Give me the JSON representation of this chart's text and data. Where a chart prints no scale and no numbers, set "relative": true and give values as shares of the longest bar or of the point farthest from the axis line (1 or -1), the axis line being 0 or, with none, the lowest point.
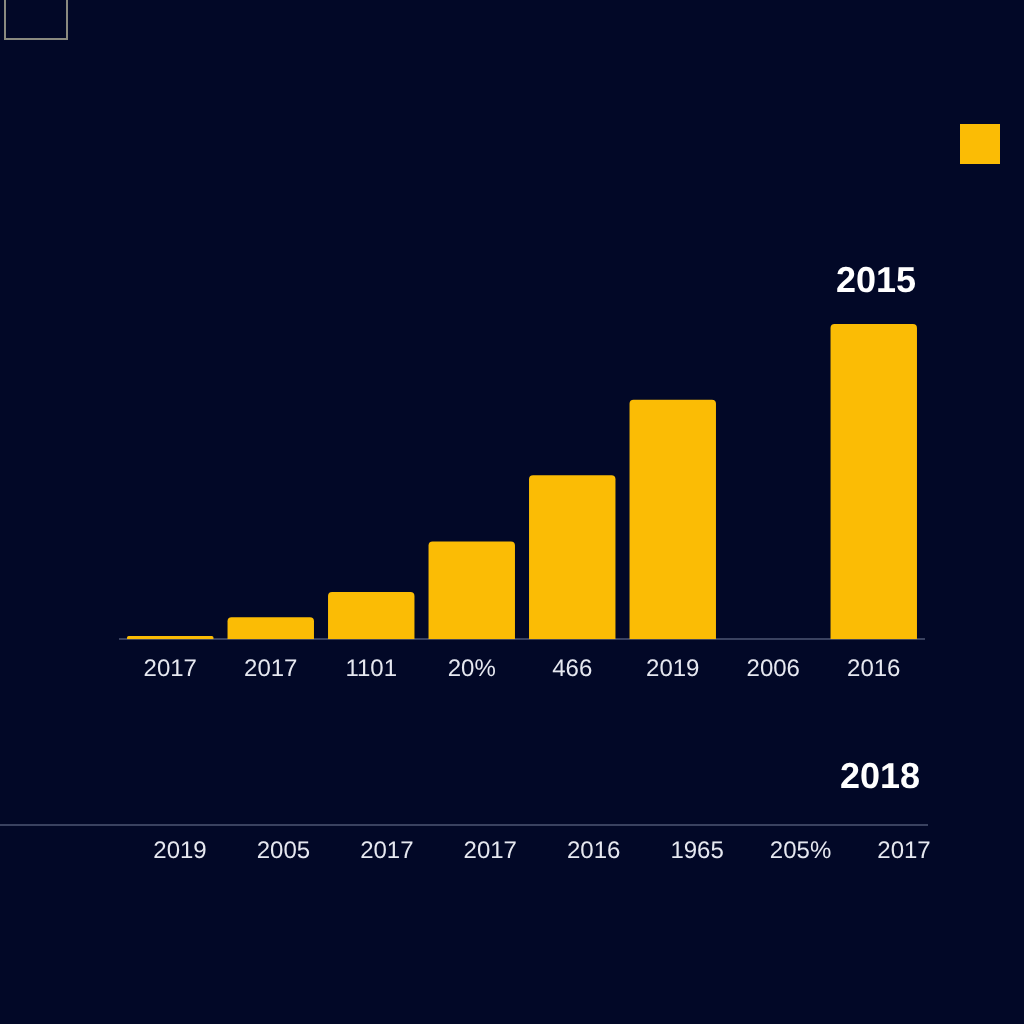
{
  "chart_data": {
    "type": "bar",
    "relative": true,
    "color": "#fbbc05",
    "grid": false,
    "legend": false,
    "categories": [
      "2017",
      "2017",
      "1101",
      "20%",
      "466",
      "2019",
      "2006",
      "2016"
    ],
    "values": [
      0.01,
      0.07,
      0.15,
      0.31,
      0.52,
      0.76,
      null,
      1
    ],
    "annotations": [
      "2015",
      "2018",
      "2019",
      "2005",
      "2017",
      "2017",
      "2016",
      "1965",
      "205%",
      "2017"
    ]
  }
}
